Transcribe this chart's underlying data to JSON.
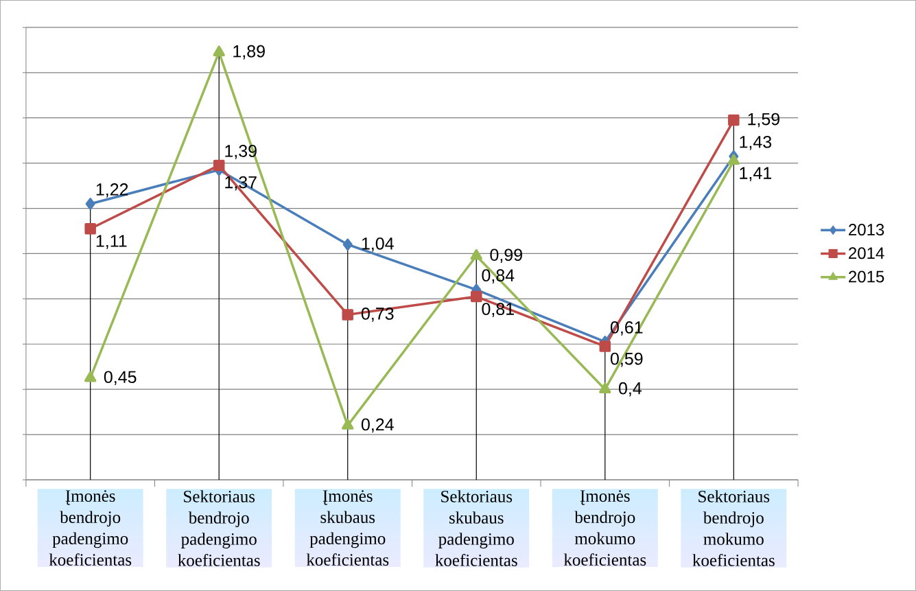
{
  "chart_data": {
    "type": "line",
    "categories": [
      "Įmonės bendrojo padengimo koeficientas",
      "Sektoriaus bendrojo padengimo koeficientas",
      "Įmonės skubaus padengimo koeficientas",
      "Sektoriaus skubaus padengimo koeficientas",
      "Įmonės bendrojo mokumo koeficientas",
      "Sektoriaus bendrojo mokumo koeficientas"
    ],
    "series": [
      {
        "name": "2013",
        "color": "#4a7ebb",
        "marker": "diamond",
        "values": [
          1.22,
          1.37,
          1.04,
          0.84,
          0.61,
          1.43
        ],
        "value_labels": [
          "1,22",
          "1,37",
          "1,04",
          "0,84",
          "0,61",
          "1,43"
        ]
      },
      {
        "name": "2014",
        "color": "#be4b48",
        "marker": "square",
        "values": [
          1.11,
          1.39,
          0.73,
          0.81,
          0.59,
          1.59
        ],
        "value_labels": [
          "1,11",
          "1,39",
          "0,73",
          "0,81",
          "0,59",
          "1,59"
        ]
      },
      {
        "name": "2015",
        "color": "#98b954",
        "marker": "triangle",
        "values": [
          0.45,
          1.89,
          0.24,
          0.99,
          0.4,
          1.41
        ],
        "value_labels": [
          "0,45",
          "1,89",
          "0,24",
          "0,99",
          "0,4",
          "1,41"
        ]
      }
    ],
    "ylim": [
      0,
      2
    ],
    "yticks": [
      {
        "value": 0,
        "label": null
      },
      {
        "value": 0.2,
        "label": null
      },
      {
        "value": 0.4,
        "label": null
      },
      {
        "value": 0.6,
        "label": null
      },
      {
        "value": 0.8,
        "label": null
      },
      {
        "value": 1,
        "label": null
      },
      {
        "value": 1.2,
        "label": null
      },
      {
        "value": 1.4,
        "label": null
      },
      {
        "value": 1.6,
        "label": null
      },
      {
        "value": 1.8,
        "label": null
      },
      {
        "value": 2,
        "label": null
      }
    ],
    "grid": true,
    "legend": "right",
    "tick_labels": "x",
    "line_style": "solid"
  }
}
